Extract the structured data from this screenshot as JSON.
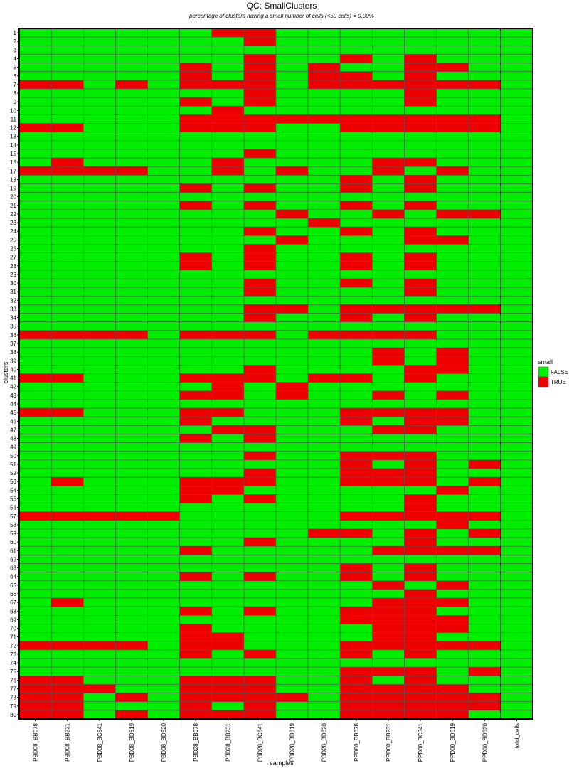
{
  "chart_data": {
    "type": "heatmap",
    "title": "QC: SmallClusters",
    "subtitle": "percentage of clusters having a small number of cells (<50 cells) = 0.00%",
    "xlabel": "samples",
    "ylabel": "clusters",
    "samples": [
      "PBD08_BB078",
      "PBD08_BB231",
      "PBD08_BC641",
      "PBD08_BD619",
      "PBD08_BD620",
      "PBD28_BB078",
      "PBD28_BB231",
      "PBD28_BC641",
      "PBD28_BD619",
      "PBD28_BD620",
      "PPD00_BB078",
      "PPD00_BB231",
      "PPD00_BC641",
      "PPD00_BD619",
      "PPD00_BD620",
      "total_cells"
    ],
    "clusters": [
      "1",
      "2",
      "3",
      "4",
      "5",
      "6",
      "7",
      "8",
      "9",
      "10",
      "11",
      "12",
      "13",
      "14",
      "15",
      "16",
      "17",
      "18",
      "19",
      "20",
      "21",
      "22",
      "23",
      "24",
      "25",
      "26",
      "27",
      "28",
      "29",
      "30",
      "31",
      "32",
      "33",
      "34",
      "35",
      "36",
      "37",
      "38",
      "39",
      "40",
      "41",
      "42",
      "43",
      "44",
      "45",
      "46",
      "47",
      "48",
      "49",
      "50",
      "51",
      "52",
      "53",
      "54",
      "55",
      "56",
      "57",
      "58",
      "59",
      "60",
      "61",
      "62",
      "63",
      "64",
      "65",
      "66",
      "67",
      "68",
      "69",
      "70",
      "71",
      "72",
      "73",
      "74",
      "75",
      "76",
      "77",
      "78",
      "79",
      "80"
    ],
    "legend": {
      "title": "small",
      "entries": [
        {
          "label": "FALSE",
          "color": "#00ee00"
        },
        {
          "label": "TRUE",
          "color": "#ee0000"
        }
      ]
    },
    "small_true": {
      "1": [
        "PBD28_BB231",
        "PBD28_BC641"
      ],
      "2": [
        "PBD28_BC641"
      ],
      "4": [
        "PBD28_BC641",
        "PPD00_BB078",
        "PPD00_BC641"
      ],
      "5": [
        "PBD28_BB078",
        "PBD28_BC641",
        "PBD28_BD620",
        "PPD00_BC641",
        "PPD00_BD619"
      ],
      "6": [
        "PBD28_BB078",
        "PBD28_BC641",
        "PBD28_BD620",
        "PPD00_BB078",
        "PPD00_BC641"
      ],
      "7": [
        "PBD08_BB078",
        "PBD08_BB231",
        "PBD08_BD619",
        "PBD28_BB078",
        "PBD28_BB231",
        "PBD28_BC641",
        "PBD28_BD620",
        "PPD00_BB078",
        "PPD00_BB231",
        "PPD00_BC641",
        "PPD00_BD619",
        "PPD00_BD620"
      ],
      "8": [
        "PBD28_BC641",
        "PPD00_BC641"
      ],
      "9": [
        "PBD28_BB078",
        "PBD28_BC641",
        "PPD00_BC641"
      ],
      "10": [
        "PBD28_BB231"
      ],
      "11": [
        "PBD28_BB078",
        "PBD28_BB231",
        "PBD28_BC641",
        "PBD28_BD619",
        "PBD28_BD620",
        "PPD00_BB078",
        "PPD00_BB231",
        "PPD00_BC641",
        "PPD00_BD619",
        "PPD00_BD620"
      ],
      "12": [
        "PBD08_BB078",
        "PBD08_BB231",
        "PBD28_BB078",
        "PBD28_BB231",
        "PBD28_BC641",
        "PPD00_BB078",
        "PPD00_BB231",
        "PPD00_BC641",
        "PPD00_BD619",
        "PPD00_BD620"
      ],
      "15": [
        "PBD28_BC641"
      ],
      "16": [
        "PBD08_BB231",
        "PBD28_BB231",
        "PPD00_BB231",
        "PPD00_BC641"
      ],
      "17": [
        "PBD08_BB078",
        "PBD08_BB231",
        "PBD08_BC641",
        "PBD08_BD619",
        "PBD28_BB231",
        "PBD28_BD619",
        "PPD00_BB231",
        "PPD00_BD619"
      ],
      "18": [
        "PPD00_BB078",
        "PPD00_BC641"
      ],
      "19": [
        "PBD28_BB078",
        "PBD28_BC641",
        "PPD00_BB078",
        "PPD00_BC641"
      ],
      "21": [
        "PBD28_BB078",
        "PBD28_BC641",
        "PPD00_BB078",
        "PPD00_BC641"
      ],
      "22": [
        "PBD28_BD619",
        "PPD00_BB231",
        "PPD00_BD619",
        "PPD00_BD620"
      ],
      "23": [
        "PBD28_BD620"
      ],
      "24": [
        "PBD28_BC641",
        "PPD00_BB078",
        "PPD00_BC641"
      ],
      "25": [
        "PBD28_BD619",
        "PPD00_BC641",
        "PPD00_BD619"
      ],
      "26": [
        "PBD28_BC641"
      ],
      "27": [
        "PBD28_BB078",
        "PBD28_BC641",
        "PPD00_BB078",
        "PPD00_BC641"
      ],
      "28": [
        "PBD28_BB078",
        "PBD28_BC641",
        "PPD00_BB078",
        "PPD00_BC641"
      ],
      "30": [
        "PBD28_BC641",
        "PPD00_BB078",
        "PPD00_BC641"
      ],
      "31": [
        "PBD28_BC641",
        "PPD00_BC641"
      ],
      "33": [
        "PBD28_BC641",
        "PBD28_BD619",
        "PPD00_BB078",
        "PPD00_BB231",
        "PPD00_BC641",
        "PPD00_BD619",
        "PPD00_BD620"
      ],
      "34": [
        "PBD28_BC641",
        "PPD00_BB078",
        "PPD00_BC641"
      ],
      "36": [
        "PBD08_BB078",
        "PBD08_BB231",
        "PBD08_BC641",
        "PBD08_BD619",
        "PBD28_BB078",
        "PBD28_BB231",
        "PBD28_BC641",
        "PBD28_BD620",
        "PPD00_BB078",
        "PPD00_BB231",
        "PPD00_BC641"
      ],
      "38": [
        "PPD00_BB231",
        "PPD00_BD619"
      ],
      "39": [
        "PPD00_BB231",
        "PPD00_BD619"
      ],
      "40": [
        "PBD28_BC641",
        "PPD00_BC641",
        "PPD00_BD619"
      ],
      "41": [
        "PBD08_BB078",
        "PBD08_BB231",
        "PBD28_BB078",
        "PBD28_BB231",
        "PBD28_BC641",
        "PBD28_BD620",
        "PPD00_BB078",
        "PPD00_BC641"
      ],
      "42": [
        "PBD28_BB231",
        "PBD28_BD619"
      ],
      "43": [
        "PBD28_BB078",
        "PBD28_BB231",
        "PBD28_BD619",
        "PPD00_BB231",
        "PPD00_BD619"
      ],
      "45": [
        "PBD08_BB078",
        "PBD08_BB231",
        "PBD28_BB078",
        "PBD28_BB231",
        "PPD00_BB078",
        "PPD00_BB231",
        "PPD00_BC641",
        "PPD00_BD619"
      ],
      "46": [
        "PBD28_BB078",
        "PPD00_BB078",
        "PPD00_BC641",
        "PPD00_BD619"
      ],
      "47": [
        "PBD28_BB231",
        "PBD28_BC641",
        "PPD00_BB231",
        "PPD00_BC641"
      ],
      "48": [
        "PBD28_BB078",
        "PBD28_BC641"
      ],
      "50": [
        "PBD28_BC641",
        "PPD00_BB078",
        "PPD00_BB231",
        "PPD00_BC641"
      ],
      "51": [
        "PPD00_BB078",
        "PPD00_BC641",
        "PPD00_BD620"
      ],
      "52": [
        "PBD28_BC641",
        "PPD00_BB078",
        "PPD00_BB231",
        "PPD00_BC641"
      ],
      "53": [
        "PBD08_BB231",
        "PBD28_BB078",
        "PBD28_BB231",
        "PBD28_BC641",
        "PPD00_BB078",
        "PPD00_BB231",
        "PPD00_BC641",
        "PPD00_BD620"
      ],
      "54": [
        "PBD28_BB078",
        "PBD28_BB231",
        "PPD00_BD619"
      ],
      "55": [
        "PBD28_BB078",
        "PBD28_BC641",
        "PPD00_BC641"
      ],
      "56": [
        "PPD00_BC641"
      ],
      "57": [
        "PBD08_BB078",
        "PBD08_BB231",
        "PBD08_BC641",
        "PBD08_BD619",
        "PBD08_BD620",
        "PPD00_BB078",
        "PPD00_BB231",
        "PPD00_BC641",
        "PPD00_BD619",
        "PPD00_BD620"
      ],
      "58": [
        "PPD00_BD619"
      ],
      "59": [
        "PBD28_BD620",
        "PPD00_BB078",
        "PPD00_BC641",
        "PPD00_BD620"
      ],
      "60": [
        "PBD28_BC641",
        "PPD00_BC641"
      ],
      "61": [
        "PBD28_BB078",
        "PPD00_BB231",
        "PPD00_BC641",
        "PPD00_BD619",
        "PPD00_BD620"
      ],
      "63": [
        "PPD00_BB078",
        "PPD00_BC641"
      ],
      "64": [
        "PBD28_BB078",
        "PBD28_BC641",
        "PPD00_BB078",
        "PPD00_BC641"
      ],
      "65": [
        "PPD00_BB231",
        "PPD00_BD619"
      ],
      "66": [
        "PPD00_BC641"
      ],
      "67": [
        "PBD08_BB231",
        "PPD00_BB231",
        "PPD00_BC641",
        "PPD00_BD619"
      ],
      "68": [
        "PBD28_BB078",
        "PBD28_BC641",
        "PPD00_BB078",
        "PPD00_BB231",
        "PPD00_BC641"
      ],
      "69": [
        "PPD00_BB078",
        "PPD00_BB231",
        "PPD00_BC641",
        "PPD00_BD619"
      ],
      "70": [
        "PBD28_BB078",
        "PPD00_BB231",
        "PPD00_BC641",
        "PPD00_BD619"
      ],
      "71": [
        "PBD28_BB078",
        "PBD28_BB231",
        "PPD00_BB231",
        "PPD00_BC641"
      ],
      "72": [
        "PBD08_BB078",
        "PBD08_BB231",
        "PBD08_BC641",
        "PBD08_BD619",
        "PBD28_BB078",
        "PBD28_BB231",
        "PPD00_BB078",
        "PPD00_BB231",
        "PPD00_BC641",
        "PPD00_BD619",
        "PPD00_BD620"
      ],
      "73": [
        "PBD28_BB078",
        "PBD28_BC641",
        "PPD00_BB078",
        "PPD00_BC641"
      ],
      "75": [
        "PPD00_BB078",
        "PPD00_BB231",
        "PPD00_BC641",
        "PPD00_BD620"
      ],
      "76": [
        "PBD08_BB078",
        "PBD08_BB231",
        "PBD28_BB078",
        "PBD28_BB231",
        "PBD28_BC641",
        "PPD00_BB078",
        "PPD00_BC641"
      ],
      "77": [
        "PBD08_BB078",
        "PBD08_BB231",
        "PBD08_BC641",
        "PBD28_BB078",
        "PBD28_BB231",
        "PBD28_BC641",
        "PPD00_BB078",
        "PPD00_BB231",
        "PPD00_BC641",
        "PPD00_BD619"
      ],
      "78": [
        "PBD08_BB078",
        "PBD08_BB231",
        "PBD08_BD619",
        "PBD28_BB078",
        "PBD28_BB231",
        "PBD28_BC641",
        "PBD28_BD619",
        "PPD00_BB078",
        "PPD00_BB231",
        "PPD00_BC641",
        "PPD00_BD619",
        "PPD00_BD620"
      ],
      "79": [
        "PBD08_BB078",
        "PBD08_BB231",
        "PBD28_BB078",
        "PBD28_BC641",
        "PPD00_BB078",
        "PPD00_BB231",
        "PPD00_BC641",
        "PPD00_BD619",
        "PPD00_BD620"
      ],
      "80": [
        "PBD08_BB078",
        "PBD08_BB231",
        "PBD08_BD619",
        "PBD28_BB078",
        "PBD28_BB231",
        "PBD28_BC641",
        "PPD00_BB078",
        "PPD00_BB231",
        "PPD00_BC641",
        "PPD00_BD619"
      ]
    }
  }
}
